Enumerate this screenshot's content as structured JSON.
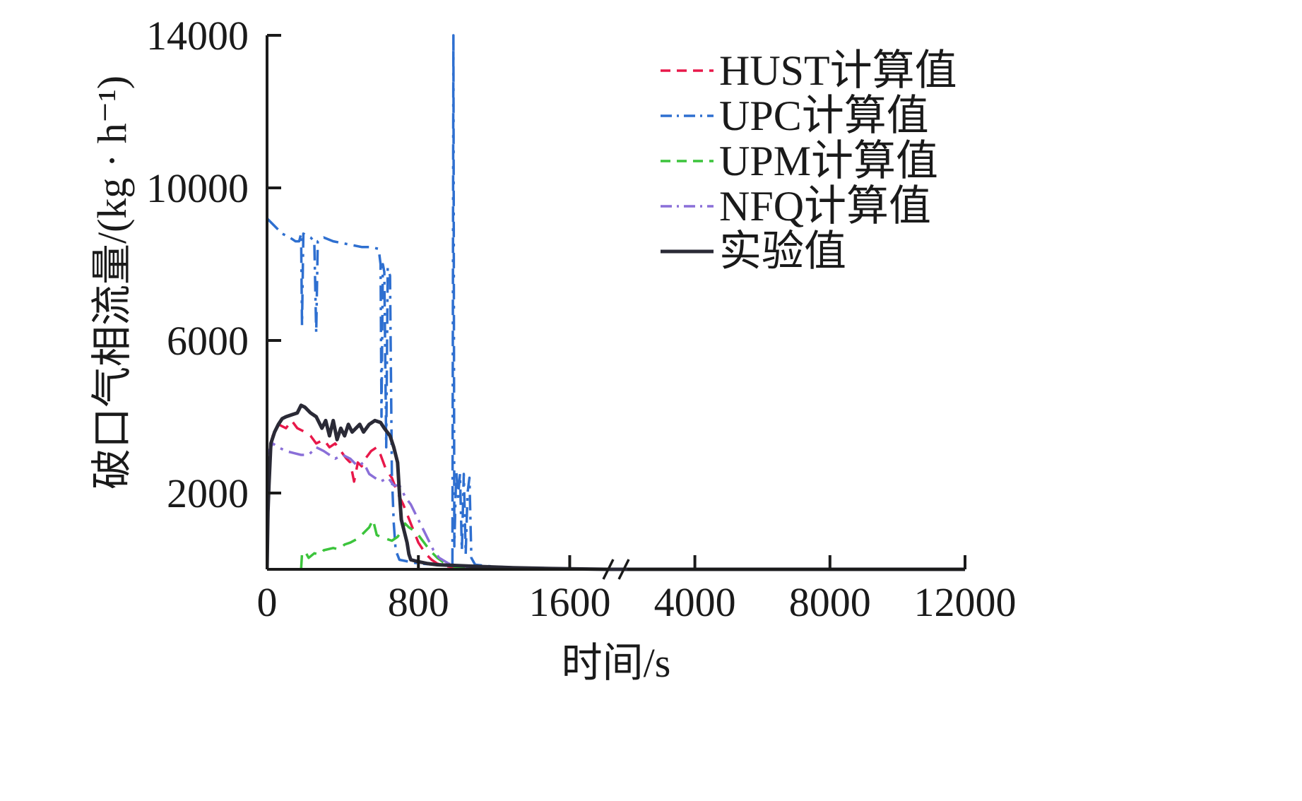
{
  "chart_data": {
    "type": "line",
    "title": "",
    "xlabel": "时间/s",
    "ylabel": "破口气相流量/(kg · h⁻¹)",
    "x_axis": {
      "type": "broken",
      "segment1_range": [
        0,
        1800
      ],
      "segment2_range": [
        2000,
        12000
      ],
      "tick_labels": [
        "0",
        "800",
        "1600",
        "4000",
        "8000",
        "12000"
      ],
      "tick_values": [
        0,
        800,
        1600,
        4000,
        8000,
        12000
      ],
      "break_marker": true
    },
    "ylim": [
      0,
      14000
    ],
    "y_tick_labels": [
      "2000",
      "6000",
      "10000",
      "14000"
    ],
    "y_tick_values": [
      2000,
      6000,
      10000,
      14000
    ],
    "grid": false,
    "legend_position": "top-right",
    "series": [
      {
        "name": "HUST计算值",
        "color": "#e8184a",
        "style": "dashed",
        "points": [
          [
            0,
            2000
          ],
          [
            15,
            3000
          ],
          [
            30,
            3500
          ],
          [
            60,
            3800
          ],
          [
            100,
            3700
          ],
          [
            130,
            3900
          ],
          [
            160,
            3700
          ],
          [
            200,
            3600
          ],
          [
            230,
            3500
          ],
          [
            260,
            3300
          ],
          [
            300,
            3400
          ],
          [
            330,
            3200
          ],
          [
            360,
            3300
          ],
          [
            390,
            3100
          ],
          [
            420,
            2900
          ],
          [
            440,
            2800
          ],
          [
            460,
            2300
          ],
          [
            480,
            2800
          ],
          [
            500,
            2700
          ],
          [
            520,
            2900
          ],
          [
            550,
            3100
          ],
          [
            580,
            3200
          ],
          [
            600,
            3000
          ],
          [
            630,
            2600
          ],
          [
            660,
            2400
          ],
          [
            690,
            2000
          ],
          [
            720,
            1700
          ],
          [
            760,
            1200
          ],
          [
            800,
            700
          ],
          [
            840,
            400
          ],
          [
            870,
            250
          ],
          [
            900,
            150
          ],
          [
            950,
            80
          ],
          [
            1000,
            50
          ],
          [
            1100,
            30
          ],
          [
            1300,
            15
          ],
          [
            1600,
            5
          ],
          [
            1800,
            0
          ]
        ]
      },
      {
        "name": "UPC计算值",
        "color": "#2e6fd0",
        "style": "dashdot",
        "points": [
          [
            0,
            9200
          ],
          [
            40,
            9000
          ],
          [
            80,
            8800
          ],
          [
            120,
            8700
          ],
          [
            150,
            8600
          ],
          [
            170,
            8600
          ],
          [
            180,
            8800
          ],
          [
            185,
            6400
          ],
          [
            192,
            8800
          ],
          [
            230,
            8700
          ],
          [
            250,
            8600
          ],
          [
            260,
            6200
          ],
          [
            268,
            8600
          ],
          [
            300,
            8700
          ],
          [
            350,
            8600
          ],
          [
            400,
            8550
          ],
          [
            450,
            8500
          ],
          [
            500,
            8450
          ],
          [
            550,
            8450
          ],
          [
            590,
            8400
          ],
          [
            600,
            8000
          ],
          [
            605,
            4000
          ],
          [
            612,
            8000
          ],
          [
            620,
            7800
          ],
          [
            630,
            3200
          ],
          [
            638,
            7900
          ],
          [
            650,
            7700
          ],
          [
            660,
            2500
          ],
          [
            670,
            1200
          ],
          [
            680,
            500
          ],
          [
            700,
            250
          ],
          [
            800,
            150
          ],
          [
            900,
            120
          ],
          [
            960,
            110
          ],
          [
            980,
            100
          ],
          [
            985,
            14000
          ],
          [
            990,
            600
          ],
          [
            1000,
            2600
          ],
          [
            1010,
            1900
          ],
          [
            1020,
            2500
          ],
          [
            1030,
            500
          ],
          [
            1040,
            2500
          ],
          [
            1050,
            400
          ],
          [
            1060,
            2000
          ],
          [
            1070,
            2400
          ],
          [
            1080,
            300
          ],
          [
            1100,
            120
          ],
          [
            1200,
            70
          ],
          [
            1300,
            50
          ],
          [
            1600,
            20
          ],
          [
            1800,
            0
          ]
        ]
      },
      {
        "name": "UPM计算值",
        "color": "#3cc43c",
        "style": "dashed",
        "points": [
          [
            180,
            0
          ],
          [
            185,
            400
          ],
          [
            200,
            480
          ],
          [
            220,
            300
          ],
          [
            250,
            420
          ],
          [
            280,
            380
          ],
          [
            300,
            500
          ],
          [
            350,
            560
          ],
          [
            380,
            520
          ],
          [
            410,
            650
          ],
          [
            440,
            700
          ],
          [
            470,
            780
          ],
          [
            500,
            900
          ],
          [
            520,
            1000
          ],
          [
            540,
            1100
          ],
          [
            560,
            1300
          ],
          [
            580,
            900
          ],
          [
            600,
            850
          ],
          [
            630,
            800
          ],
          [
            660,
            750
          ],
          [
            690,
            850
          ],
          [
            710,
            1000
          ],
          [
            730,
            1200
          ],
          [
            750,
            1100
          ],
          [
            780,
            1000
          ],
          [
            800,
            900
          ],
          [
            830,
            700
          ],
          [
            860,
            500
          ],
          [
            900,
            300
          ],
          [
            950,
            120
          ],
          [
            1000,
            60
          ],
          [
            1200,
            20
          ],
          [
            1500,
            5
          ],
          [
            1800,
            0
          ]
        ]
      },
      {
        "name": "NFQ计算值",
        "color": "#8a6fd8",
        "style": "dashdot",
        "points": [
          [
            0,
            3000
          ],
          [
            30,
            3300
          ],
          [
            60,
            3200
          ],
          [
            100,
            3100
          ],
          [
            140,
            3050
          ],
          [
            180,
            3000
          ],
          [
            220,
            3000
          ],
          [
            260,
            3200
          ],
          [
            300,
            3100
          ],
          [
            330,
            3000
          ],
          [
            360,
            2900
          ],
          [
            400,
            3000
          ],
          [
            440,
            2900
          ],
          [
            480,
            2700
          ],
          [
            510,
            2800
          ],
          [
            540,
            2500
          ],
          [
            570,
            2400
          ],
          [
            600,
            2300
          ],
          [
            640,
            2400
          ],
          [
            670,
            2200
          ],
          [
            700,
            2200
          ],
          [
            730,
            1900
          ],
          [
            760,
            1700
          ],
          [
            790,
            1400
          ],
          [
            820,
            1100
          ],
          [
            850,
            800
          ],
          [
            880,
            500
          ],
          [
            910,
            300
          ],
          [
            960,
            150
          ],
          [
            1000,
            90
          ],
          [
            1100,
            50
          ],
          [
            1300,
            20
          ],
          [
            1600,
            5
          ],
          [
            1800,
            0
          ]
        ]
      },
      {
        "name": "实验值",
        "color": "#2a2a36",
        "style": "solid",
        "points": [
          [
            0,
            0
          ],
          [
            5,
            1500
          ],
          [
            10,
            2200
          ],
          [
            20,
            3300
          ],
          [
            40,
            3600
          ],
          [
            60,
            3800
          ],
          [
            80,
            3950
          ],
          [
            100,
            4000
          ],
          [
            130,
            4050
          ],
          [
            160,
            4100
          ],
          [
            180,
            4300
          ],
          [
            200,
            4250
          ],
          [
            230,
            4100
          ],
          [
            260,
            4000
          ],
          [
            290,
            3700
          ],
          [
            310,
            3900
          ],
          [
            330,
            3500
          ],
          [
            350,
            3900
          ],
          [
            370,
            3400
          ],
          [
            390,
            3700
          ],
          [
            410,
            3500
          ],
          [
            430,
            3800
          ],
          [
            450,
            3600
          ],
          [
            470,
            3700
          ],
          [
            490,
            3800
          ],
          [
            510,
            3600
          ],
          [
            540,
            3800
          ],
          [
            570,
            3900
          ],
          [
            600,
            3850
          ],
          [
            620,
            3700
          ],
          [
            650,
            3500
          ],
          [
            670,
            3200
          ],
          [
            690,
            2800
          ],
          [
            700,
            2000
          ],
          [
            710,
            1300
          ],
          [
            720,
            1100
          ],
          [
            730,
            900
          ],
          [
            740,
            700
          ],
          [
            750,
            400
          ],
          [
            760,
            250
          ],
          [
            800,
            200
          ],
          [
            850,
            150
          ],
          [
            900,
            120
          ],
          [
            1000,
            100
          ],
          [
            1100,
            80
          ],
          [
            1200,
            60
          ],
          [
            1300,
            40
          ],
          [
            1500,
            20
          ],
          [
            1800,
            0
          ],
          [
            2000,
            0
          ],
          [
            12000,
            0
          ]
        ]
      }
    ]
  }
}
